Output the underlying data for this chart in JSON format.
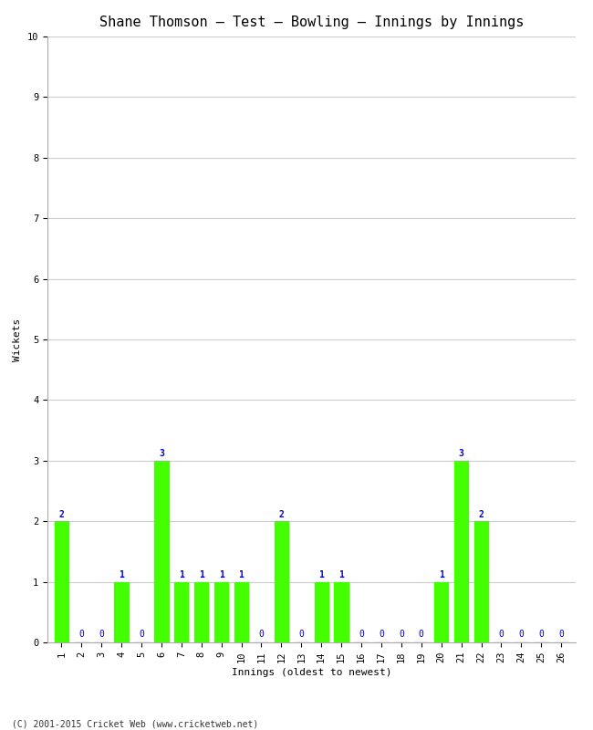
{
  "title": "Shane Thomson – Test – Bowling – Innings by Innings",
  "xlabel": "Innings (oldest to newest)",
  "ylabel": "Wickets",
  "categories": [
    "1",
    "2",
    "3",
    "4",
    "5",
    "6",
    "7",
    "8",
    "9",
    "10",
    "11",
    "12",
    "13",
    "14",
    "15",
    "16",
    "17",
    "18",
    "19",
    "20",
    "21",
    "22",
    "23",
    "24",
    "25",
    "26"
  ],
  "values": [
    2,
    0,
    0,
    1,
    0,
    3,
    1,
    1,
    1,
    1,
    0,
    2,
    0,
    1,
    1,
    0,
    0,
    0,
    0,
    1,
    3,
    2,
    0,
    0,
    0,
    0
  ],
  "bar_color": "#44ff00",
  "bar_edge_color": "#44ff00",
  "label_color": "#0000cc",
  "background_color": "#ffffff",
  "ylim": [
    0,
    10
  ],
  "yticks": [
    0,
    1,
    2,
    3,
    4,
    5,
    6,
    7,
    8,
    9,
    10
  ],
  "grid_color": "#cccccc",
  "footer": "(C) 2001-2015 Cricket Web (www.cricketweb.net)",
  "title_fontsize": 11,
  "axis_label_fontsize": 8,
  "tick_fontsize": 7.5,
  "label_fontsize": 7
}
